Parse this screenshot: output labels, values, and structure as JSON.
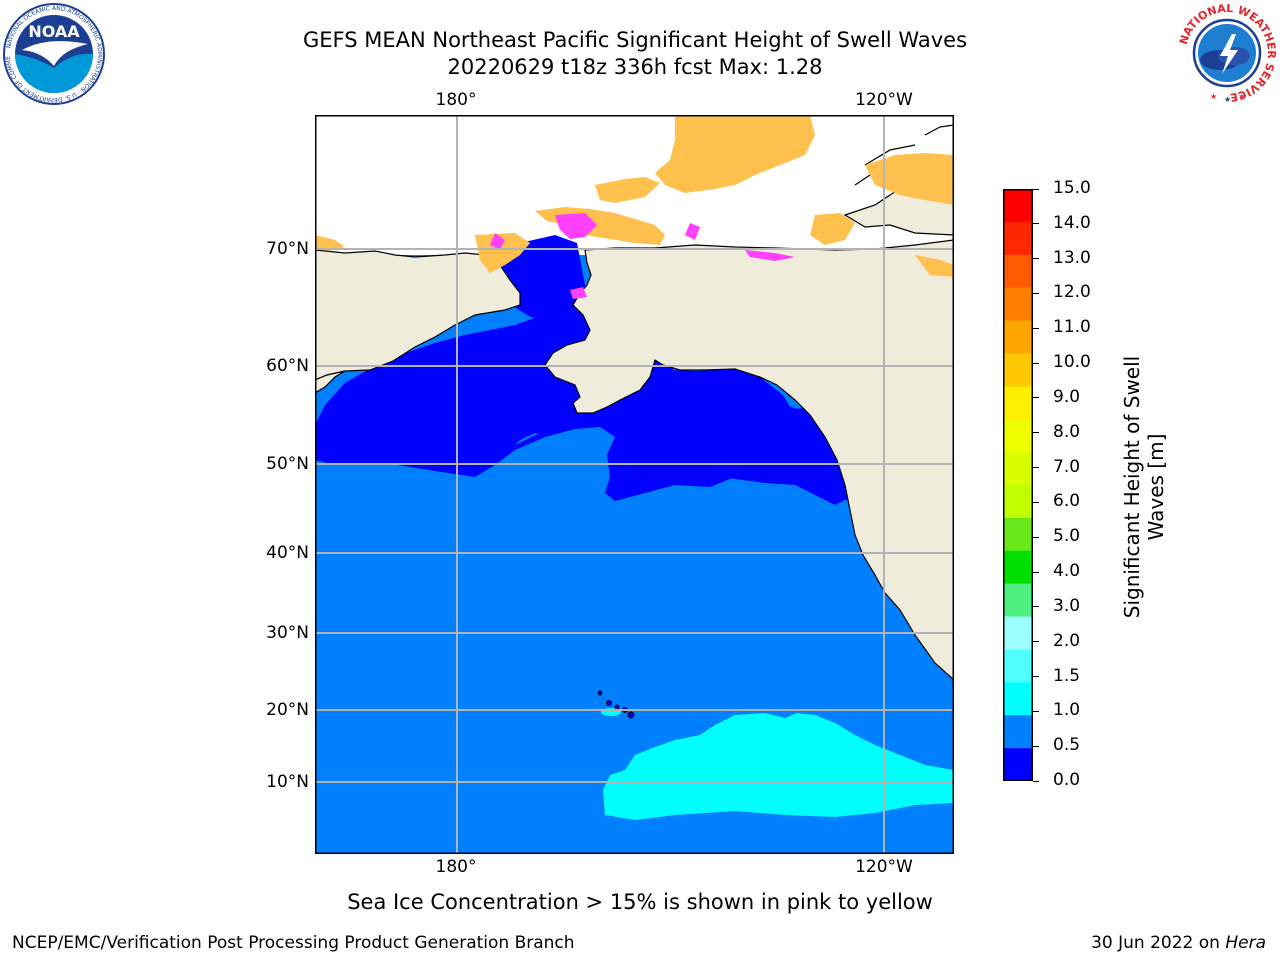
{
  "title": {
    "line1": "GEFS MEAN Northeast Pacific Significant Height of Swell Waves",
    "line2": "20220629 t18z 336h fcst   Max: 1.28"
  },
  "map": {
    "lon_labels": [
      "180°",
      "120°W"
    ],
    "lat_labels": [
      "70°N",
      "60°N",
      "50°N",
      "40°N",
      "30°N",
      "20°N",
      "10°N"
    ],
    "colors": {
      "ocean_low": "#0000ff",
      "ocean_mid": "#0080ff",
      "ocean_cyan": "#00ffff",
      "land": "#efecdc",
      "grid": "#b3b3b3",
      "ice": "#ffc04d",
      "ice_edge": "#ff40ff"
    }
  },
  "colorbar": {
    "title_line1": "Significant Height of Swell",
    "title_line2": "Waves [m]",
    "ticks": [
      "15.0",
      "14.0",
      "13.0",
      "12.0",
      "11.0",
      "10.0",
      "9.0",
      "8.0",
      "7.0",
      "6.0",
      "5.0",
      "4.0",
      "3.0",
      "2.0",
      "1.5",
      "1.0",
      "0.5",
      "0.0"
    ],
    "colors_top_to_bottom": [
      "#ff0000",
      "#ff2600",
      "#ff5a00",
      "#ff8000",
      "#ffa500",
      "#ffc800",
      "#ffee00",
      "#f0ff00",
      "#d8ff00",
      "#c0ff00",
      "#68e81a",
      "#00e000",
      "#50f080",
      "#9effff",
      "#50ffff",
      "#00ffff",
      "#0080ff",
      "#0000ff"
    ]
  },
  "caption": "Sea Ice Concentration > 15% is shown in pink to yellow",
  "footer": {
    "left": "NCEP/EMC/Verification Post Processing Product Generation Branch",
    "date": "30 Jun 2022 on ",
    "machine": "Hera"
  },
  "logos": {
    "noaa": "NOAA",
    "noaa_ring": "NATIONAL OCEANIC AND ATMOSPHERIC ADMINISTRATION · U.S. DEPARTMENT OF COMMERCE",
    "nws_ring": "NATIONAL WEATHER SERVICE"
  }
}
